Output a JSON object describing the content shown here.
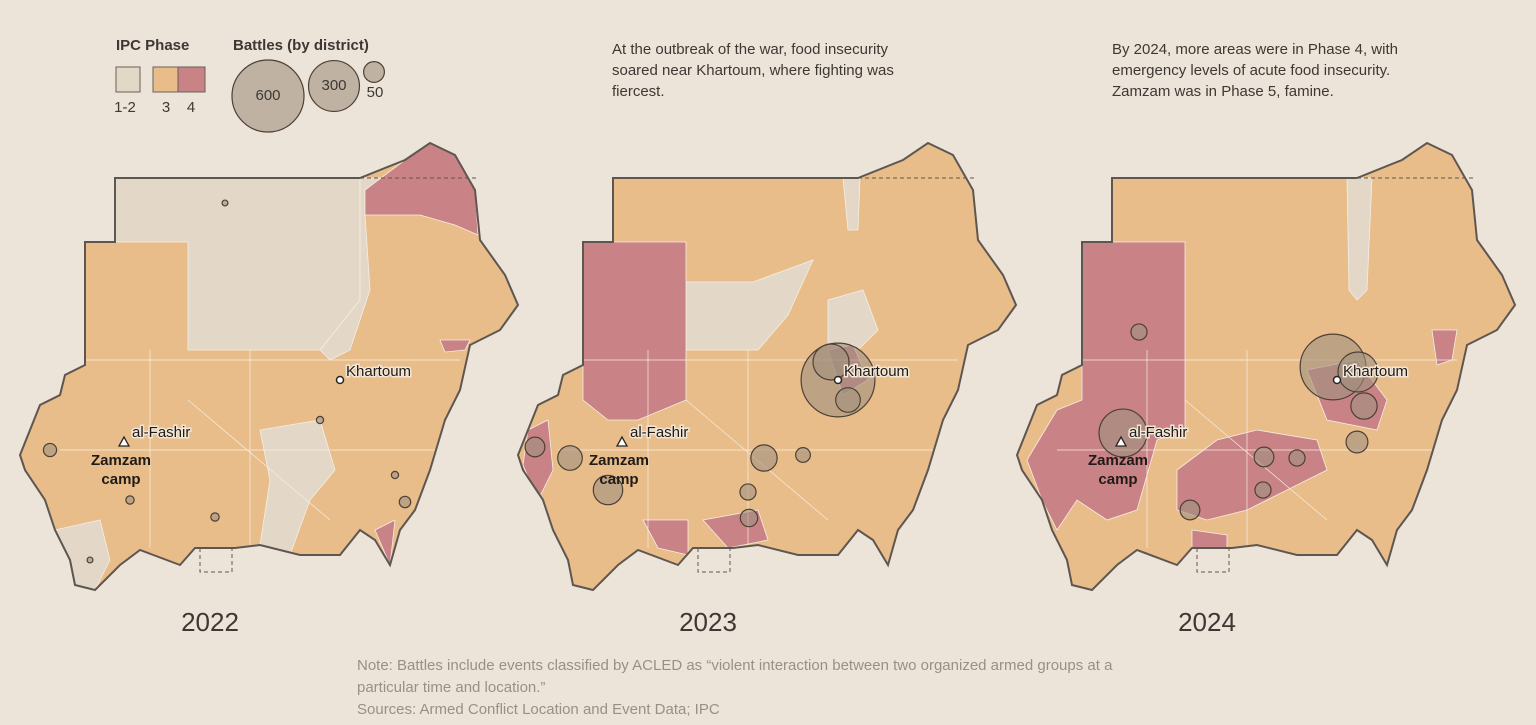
{
  "legend": {
    "ipc_title": "IPC Phase",
    "ipc_labels": [
      "1-2",
      "3",
      "4"
    ],
    "ipc_colors": [
      "#e3d7c8",
      "#e8bd8a",
      "#c98286"
    ],
    "battles_title": "Battles (by district)",
    "battle_sizes": [
      600,
      300,
      50
    ],
    "battle_color": "#a0917f"
  },
  "places": {
    "khartoum": "Khartoum",
    "al_fashir": "al-Fashir",
    "zamzam": "Zamzam camp"
  },
  "panels": [
    {
      "year": "2022",
      "battle_values": [
        4,
        20,
        8,
        15,
        6,
        8,
        4,
        6
      ]
    },
    {
      "year": "2023",
      "caption": "At the outbreak of the war, food insecurity soared near Khartoum, where fighting was fiercest.",
      "battle_values": [
        630,
        150,
        70,
        80,
        70,
        100,
        45,
        35,
        30,
        25
      ]
    },
    {
      "year": "2024",
      "caption": "By 2024, more areas were in Phase 4, with emergency levels of acute food insecurity. Zamzam was in Phase 5, famine.",
      "battle_values": [
        500,
        185,
        265,
        80,
        55,
        30,
        45,
        45,
        30,
        30
      ]
    }
  ],
  "note": "Note: Battles include events classified by ACLED as “violent interaction between two organized armed groups at a particular time and location.”",
  "sources": "Sources: Armed Conflict Location and Event Data; IPC"
}
